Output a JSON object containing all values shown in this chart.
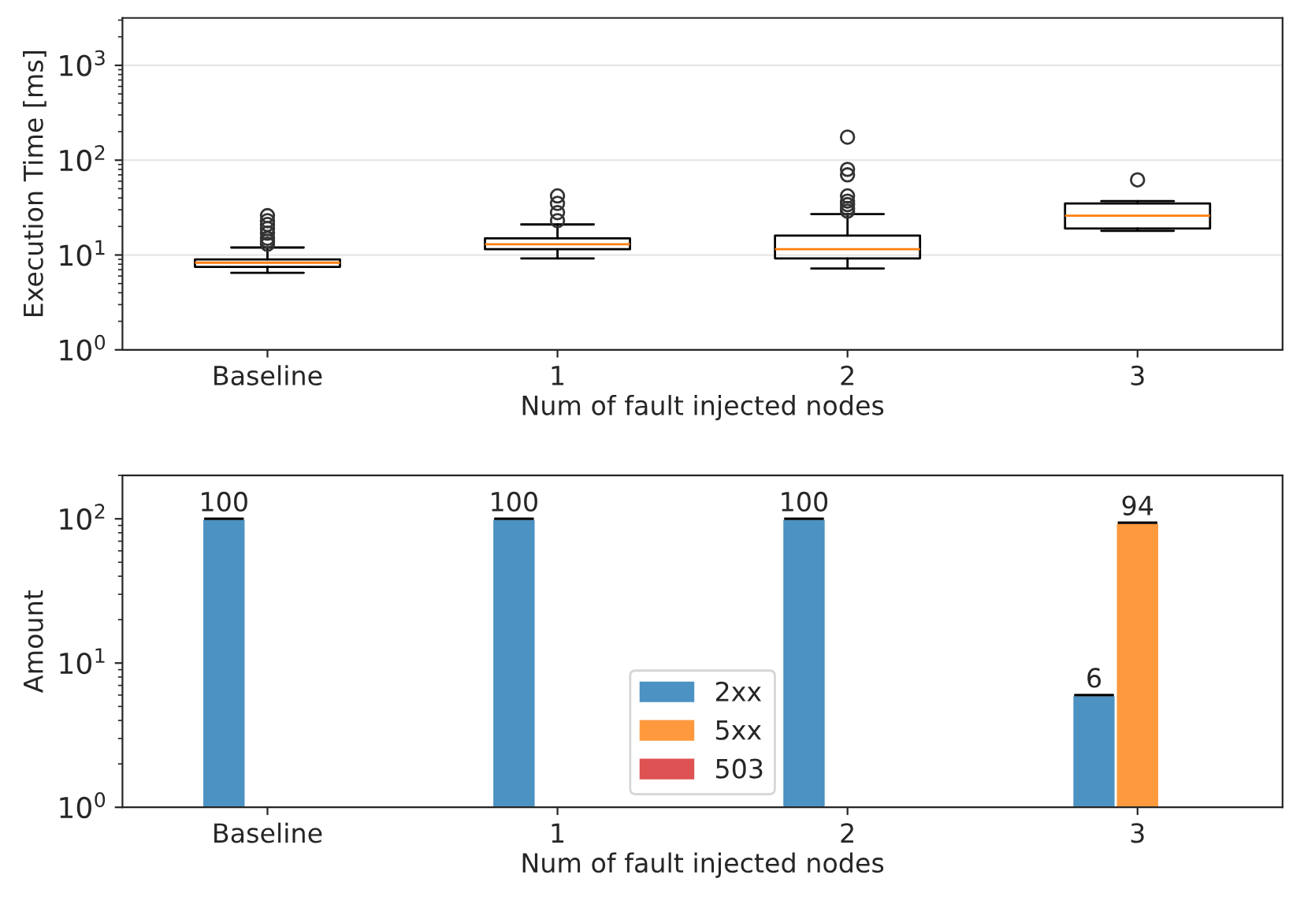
{
  "chart_data": [
    {
      "type": "box",
      "xlabel": "Num of fault injected nodes",
      "ylabel": "Execution Time [ms]",
      "categories": [
        "Baseline",
        "1",
        "2",
        "3"
      ],
      "log": "y",
      "ylim": [
        1,
        3162
      ],
      "yticks": [
        {
          "value": 1,
          "label": "10$^{0}$"
        },
        {
          "value": 10,
          "label": "10$^{1}$"
        },
        {
          "value": 100,
          "label": "10$^{2}$"
        },
        {
          "value": 1000,
          "label": "10$^{3}$"
        }
      ],
      "grid": "y",
      "series": [
        {
          "boxes": [
            {
              "low": 6.5,
              "q1": 7.5,
              "median": 8.3,
              "q3": 9,
              "high": 12,
              "outliers": [
                13,
                14,
                15,
                17,
                19,
                21,
                23,
                26
              ]
            },
            {
              "low": 9.2,
              "q1": 11.5,
              "median": 13,
              "q3": 15,
              "high": 21,
              "outliers": [
                23,
                28,
                35,
                42
              ]
            },
            {
              "low": 7.2,
              "q1": 9.2,
              "median": 11.5,
              "q3": 16,
              "high": 27,
              "outliers": [
                29,
                31,
                34,
                37,
                42,
                70,
                80,
                175
              ]
            },
            {
              "low": 18,
              "q1": 19,
              "median": 26,
              "q3": 35,
              "high": 37,
              "outliers": [
                62
              ]
            }
          ]
        }
      ]
    },
    {
      "type": "bar",
      "xlabel": "Num of fault injected nodes",
      "ylabel": "Amount",
      "categories": [
        "Baseline",
        "1",
        "2",
        "3"
      ],
      "log": "y",
      "ylim": [
        1,
        200
      ],
      "yticks": [
        {
          "value": 1,
          "label": "10$^{0}$"
        },
        {
          "value": 10,
          "label": "10$^{1}$"
        },
        {
          "value": 100,
          "label": "10$^{2}$"
        }
      ],
      "legend": "bottom",
      "data_labels": true,
      "series": [
        {
          "name": "2xx",
          "color": "#4c92c3",
          "values": [
            100,
            100,
            100,
            6
          ],
          "errors": [
            0,
            0,
            0,
            0
          ]
        },
        {
          "name": "5xx",
          "color": "#ff993e",
          "values": [
            null,
            null,
            null,
            94
          ],
          "errors": [
            null,
            null,
            null,
            0
          ]
        },
        {
          "name": "503",
          "color": "#de5253",
          "values": [
            null,
            null,
            null,
            null
          ]
        }
      ]
    }
  ]
}
